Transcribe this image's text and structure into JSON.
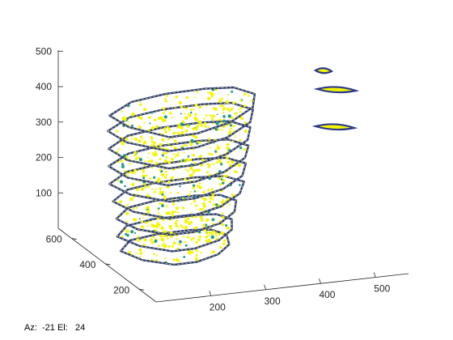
{
  "chart_data": {
    "type": "scatter",
    "title": "",
    "xlabel": "",
    "ylabel": "",
    "zlabel": "",
    "x_ticks": [
      200,
      300,
      400,
      500
    ],
    "y_ticks": [
      200,
      400,
      600
    ],
    "z_ticks": [
      100,
      200,
      300,
      400,
      500
    ],
    "xlim": [
      100,
      560
    ],
    "ylim": [
      100,
      680
    ],
    "zlim": [
      0,
      520
    ],
    "grid": false,
    "legend": "none",
    "colors": {
      "contour": "#2b3a8a",
      "fill_primary": "#f5f500",
      "fill_secondary": "#1f9a8a",
      "axis": "#262626"
    },
    "series": [
      {
        "z": 10,
        "x": [
          165,
          205,
          260,
          320,
          350,
          360,
          340,
          300,
          250,
          210,
          175
        ],
        "y": [
          520,
          590,
          600,
          585,
          560,
          500,
          420,
          360,
          330,
          340,
          420
        ]
      },
      {
        "z": 60,
        "x": [
          160,
          200,
          255,
          320,
          360,
          370,
          345,
          300,
          245,
          205,
          170
        ],
        "y": [
          525,
          595,
          610,
          590,
          560,
          500,
          420,
          355,
          325,
          335,
          420
        ]
      },
      {
        "z": 120,
        "x": [
          160,
          205,
          260,
          330,
          370,
          380,
          350,
          300,
          240,
          200,
          165
        ],
        "y": [
          530,
          600,
          615,
          600,
          570,
          505,
          420,
          350,
          320,
          330,
          420
        ]
      },
      {
        "z": 180,
        "x": [
          155,
          205,
          265,
          335,
          380,
          395,
          360,
          300,
          240,
          195,
          160
        ],
        "y": [
          535,
          605,
          620,
          605,
          575,
          505,
          420,
          345,
          315,
          325,
          425
        ]
      },
      {
        "z": 240,
        "x": [
          150,
          205,
          270,
          340,
          385,
          400,
          365,
          305,
          240,
          195,
          155
        ],
        "y": [
          540,
          610,
          625,
          610,
          580,
          510,
          420,
          345,
          310,
          320,
          430
        ]
      },
      {
        "z": 300,
        "x": [
          150,
          210,
          275,
          345,
          390,
          405,
          370,
          305,
          240,
          190,
          150
        ],
        "y": [
          545,
          615,
          630,
          615,
          585,
          510,
          420,
          340,
          305,
          315,
          430
        ]
      },
      {
        "z": 360,
        "x": [
          150,
          210,
          280,
          350,
          395,
          410,
          375,
          310,
          240,
          190,
          150
        ],
        "y": [
          545,
          620,
          635,
          620,
          590,
          515,
          420,
          340,
          300,
          310,
          430
        ]
      },
      {
        "z": 420,
        "x": [
          150,
          215,
          285,
          355,
          400,
          415,
          380,
          310,
          240,
          190,
          150
        ],
        "y": [
          550,
          625,
          640,
          625,
          595,
          515,
          420,
          335,
          300,
          310,
          435
        ]
      },
      {
        "z": 470,
        "x": [
          155,
          220,
          290,
          360,
          405,
          420,
          385,
          315,
          240,
          190,
          155
        ],
        "y": [
          555,
          630,
          645,
          630,
          600,
          520,
          420,
          335,
          295,
          305,
          440
        ]
      }
    ]
  },
  "view": {
    "readout": "Az:  -21 El:   24"
  }
}
